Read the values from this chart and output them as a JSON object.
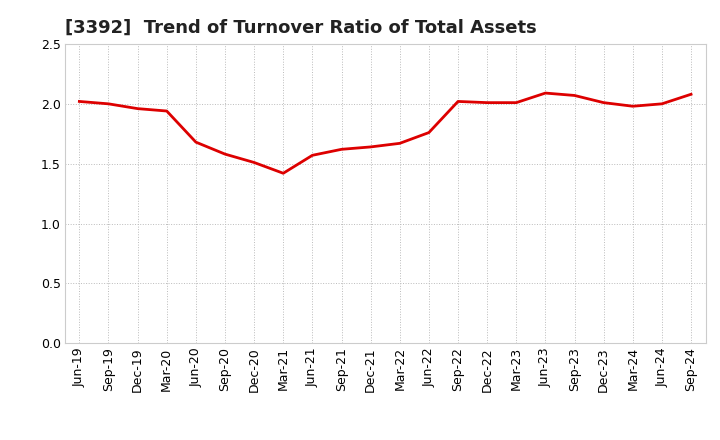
{
  "title": "[3392]  Trend of Turnover Ratio of Total Assets",
  "x_labels": [
    "Jun-19",
    "Sep-19",
    "Dec-19",
    "Mar-20",
    "Jun-20",
    "Sep-20",
    "Dec-20",
    "Mar-21",
    "Jun-21",
    "Sep-21",
    "Dec-21",
    "Mar-22",
    "Jun-22",
    "Sep-22",
    "Dec-22",
    "Mar-23",
    "Jun-23",
    "Sep-23",
    "Dec-23",
    "Mar-24",
    "Jun-24",
    "Sep-24"
  ],
  "y_values": [
    2.02,
    2.0,
    1.96,
    1.94,
    1.68,
    1.58,
    1.51,
    1.42,
    1.57,
    1.62,
    1.64,
    1.67,
    1.76,
    2.02,
    2.01,
    2.01,
    2.09,
    2.07,
    2.01,
    1.98,
    2.0,
    2.08
  ],
  "ylim": [
    0.0,
    2.5
  ],
  "yticks": [
    0.0,
    0.5,
    1.0,
    1.5,
    2.0,
    2.5
  ],
  "ytick_labels": [
    "0.0",
    "0.5",
    "1.0",
    "1.5",
    "2.0",
    "2.5"
  ],
  "line_color": "#dd0000",
  "line_width": 2.0,
  "bg_color": "#ffffff",
  "plot_bg_color": "#ffffff",
  "grid_color": "#bbbbbb",
  "title_fontsize": 13,
  "tick_fontsize": 9,
  "title_color": "#222222",
  "title_fontweight": "bold"
}
